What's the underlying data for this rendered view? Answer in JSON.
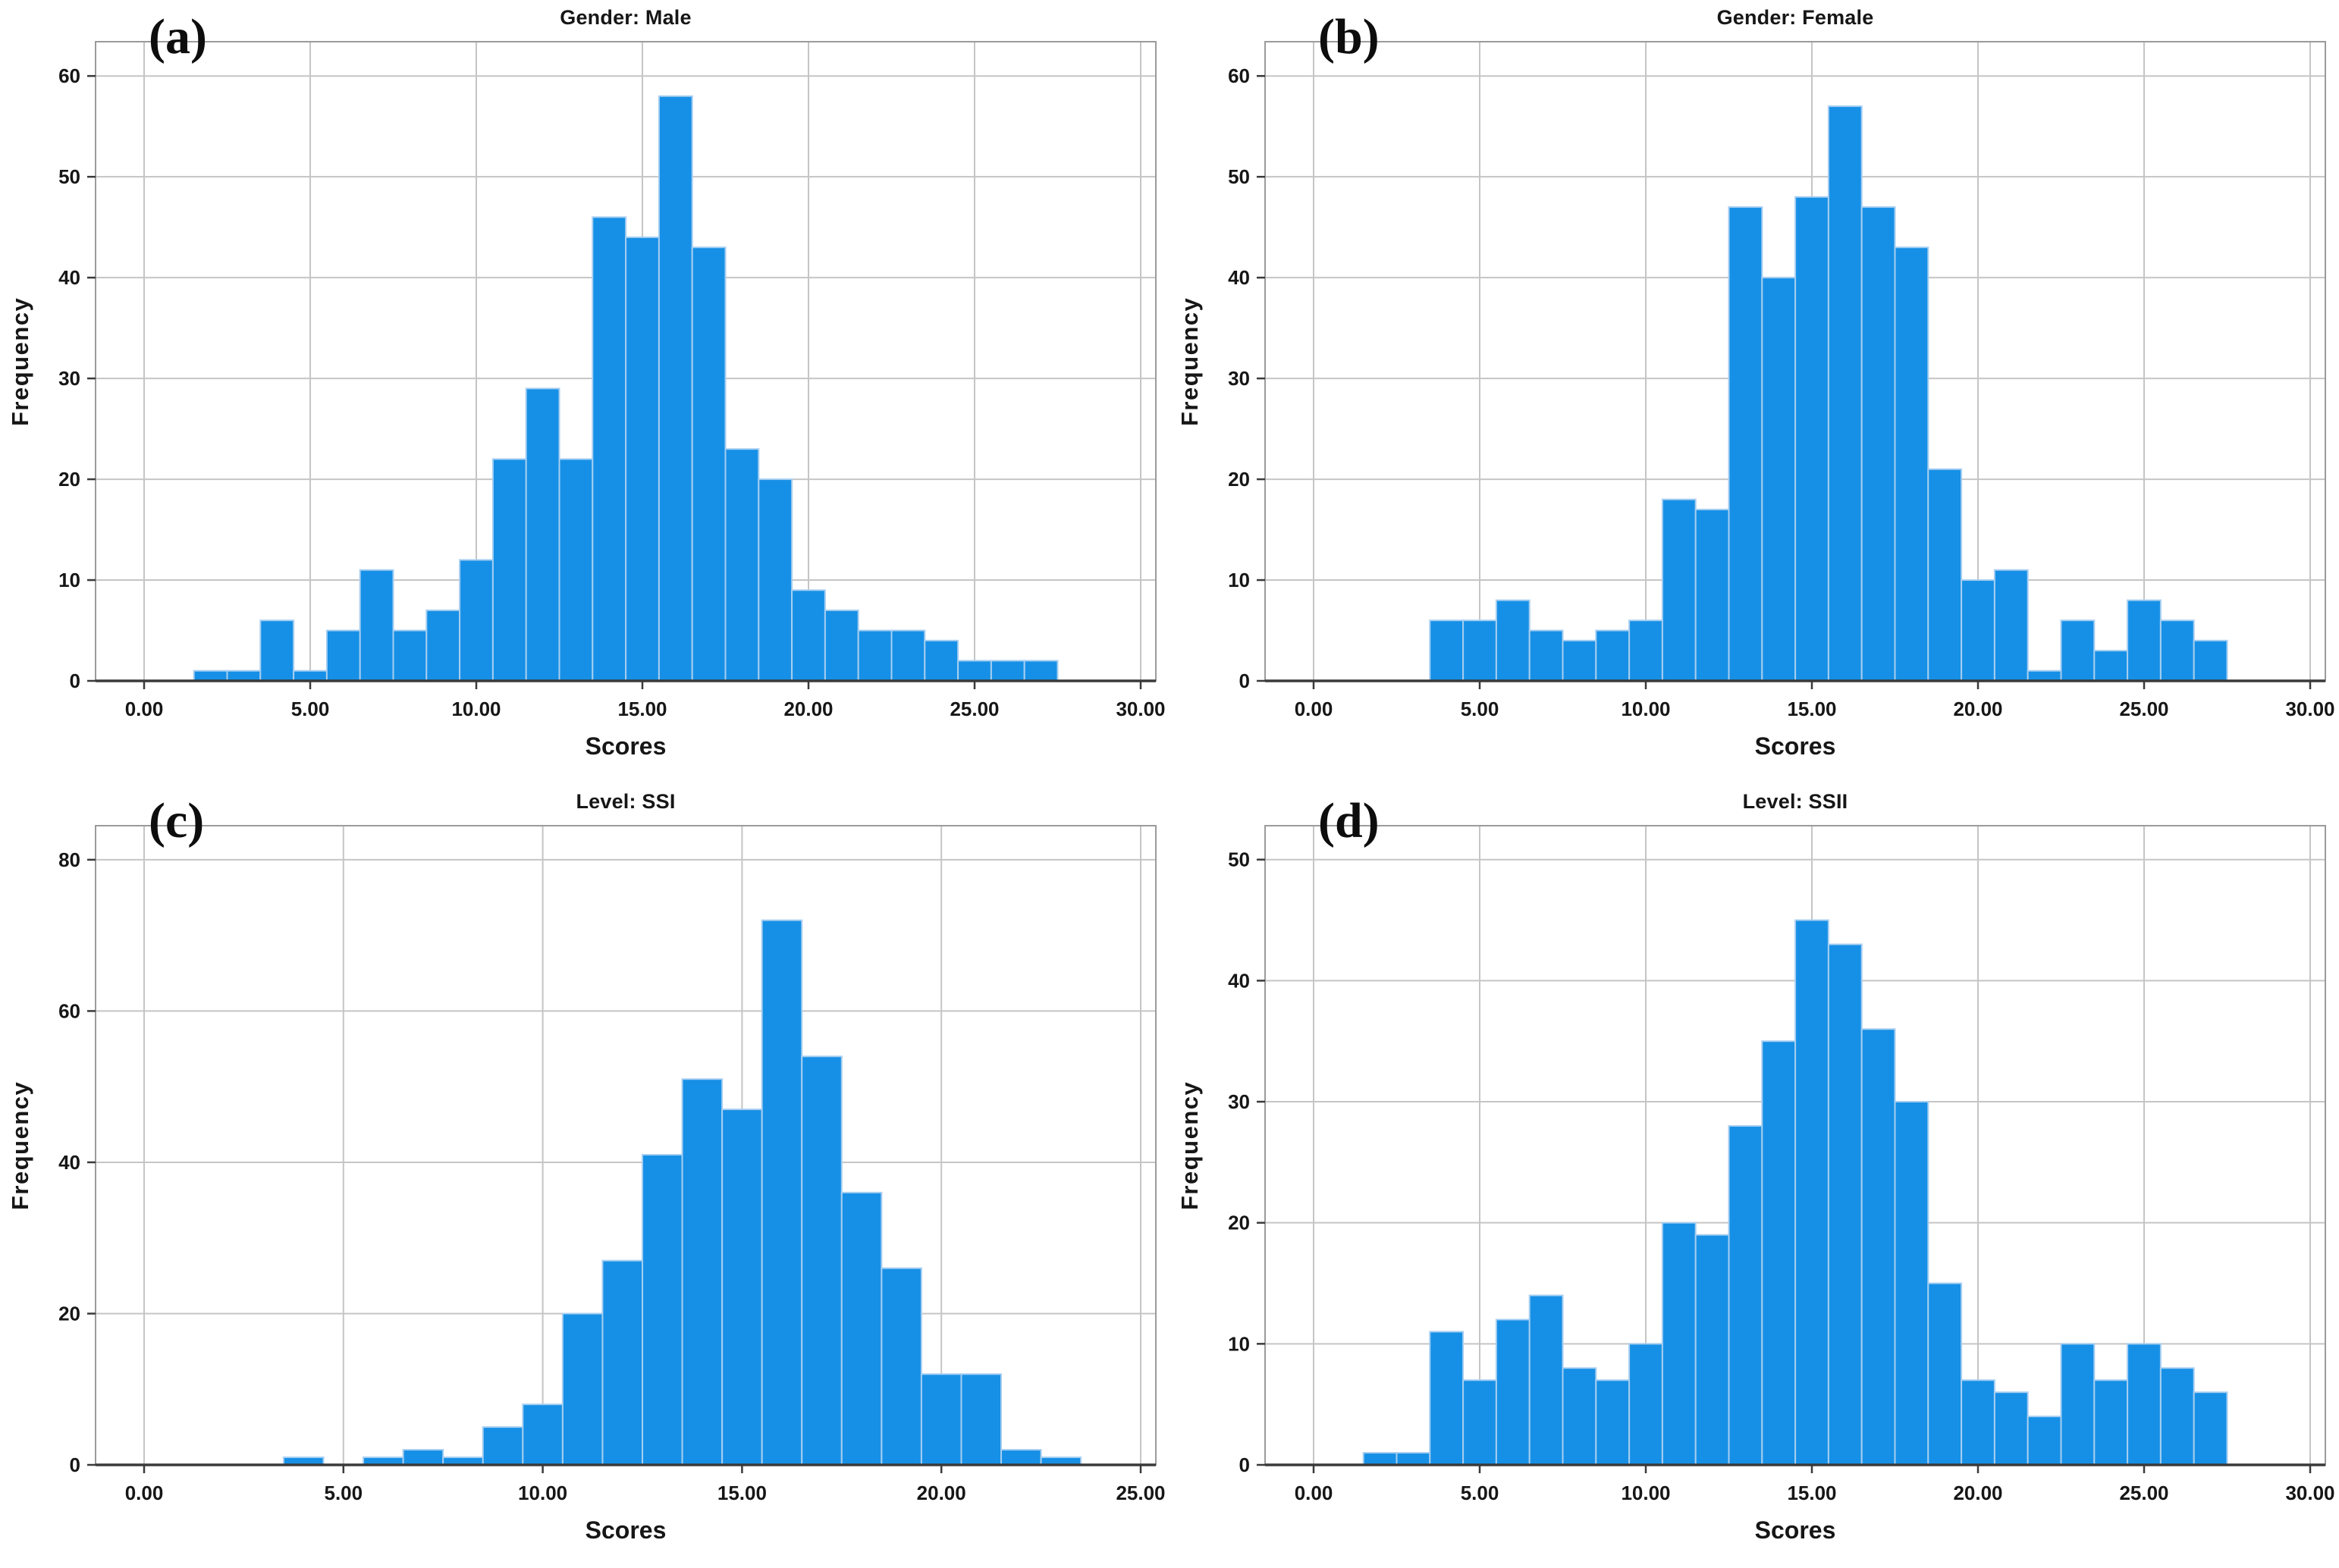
{
  "figure": {
    "background": "#FFFFFF",
    "description_title_row1_left": "Gender: Male",
    "description_title_row1_right": "Gender: Female",
    "description_title_row2_left": "Level: SSI",
    "description_title_row2_right": "Level: SSII"
  },
  "colors": {
    "bar_fill": "#1690E6",
    "bar_stroke": "#A6CEF1",
    "gridline": "#C5C5C5",
    "frame": "#9B9B9B",
    "axis_line": "#3A3A3A",
    "text": "#161616",
    "background": "#FFFFFF"
  },
  "chart_data": [
    {
      "panel_id": "a",
      "type": "bar",
      "corner_label": "(a)",
      "title": "Gender: Male",
      "xlabel": "Scores",
      "ylabel": "Frequency",
      "bin_width": 1,
      "x_ticks": [
        0,
        5,
        10,
        15,
        20,
        25,
        30
      ],
      "x_tick_labels": [
        "0.00",
        "5.00",
        "10.00",
        "15.00",
        "20.00",
        "25.00",
        "30.00"
      ],
      "y_ticks": [
        0,
        10,
        20,
        30,
        40,
        50,
        60
      ],
      "y_tick_labels": [
        "0",
        "10",
        "20",
        "30",
        "40",
        "50",
        "60"
      ],
      "ylim": [
        0,
        63.4
      ],
      "ymax_view": 63.4,
      "grid": true,
      "bars": {
        "centers": [
          2,
          3,
          4,
          5,
          6,
          7,
          8,
          9,
          10,
          11,
          12,
          13,
          14,
          15,
          16,
          17,
          18,
          19,
          20,
          21,
          22,
          23,
          24,
          25,
          26,
          27
        ],
        "counts": [
          1,
          1,
          6,
          1,
          5,
          11,
          5,
          7,
          12,
          22,
          29,
          22,
          46,
          44,
          58,
          43,
          23,
          20,
          9,
          7,
          5,
          5,
          4,
          2,
          2,
          2
        ]
      }
    },
    {
      "panel_id": "b",
      "type": "bar",
      "corner_label": "(b)",
      "title": "Gender: Female",
      "xlabel": "Scores",
      "ylabel": "Frequency",
      "bin_width": 1,
      "x_ticks": [
        0,
        5,
        10,
        15,
        20,
        25,
        30
      ],
      "x_tick_labels": [
        "0.00",
        "5.00",
        "10.00",
        "15.00",
        "20.00",
        "25.00",
        "30.00"
      ],
      "y_ticks": [
        0,
        10,
        20,
        30,
        40,
        50,
        60
      ],
      "y_tick_labels": [
        "0",
        "10",
        "20",
        "30",
        "40",
        "50",
        "60"
      ],
      "ylim": [
        0,
        63.4
      ],
      "ymax_view": 63.4,
      "grid": true,
      "bars": {
        "centers": [
          4,
          5,
          6,
          7,
          8,
          9,
          10,
          11,
          12,
          13,
          14,
          15,
          16,
          17,
          18,
          19,
          20,
          21,
          22,
          23,
          24,
          25,
          26,
          27
        ],
        "counts": [
          6,
          6,
          8,
          5,
          4,
          5,
          6,
          18,
          17,
          47,
          40,
          48,
          57,
          47,
          43,
          21,
          10,
          11,
          1,
          6,
          3,
          8,
          6,
          4
        ]
      }
    },
    {
      "panel_id": "c",
      "type": "bar",
      "corner_label": "(c)",
      "title": "Level: SSI",
      "xlabel": "Scores",
      "ylabel": "Frequency",
      "bin_width": 1,
      "x_ticks": [
        0,
        5,
        10,
        15,
        20,
        25
      ],
      "x_tick_labels": [
        "0.00",
        "5.00",
        "10.00",
        "15.00",
        "20.00",
        "25.00"
      ],
      "y_ticks": [
        0,
        20,
        40,
        60,
        80
      ],
      "y_tick_labels": [
        "0",
        "20",
        "40",
        "60",
        "80"
      ],
      "ylim": [
        0,
        84.5
      ],
      "ymax_view": 84.5,
      "grid": true,
      "bars": {
        "centers": [
          4,
          5,
          6,
          7,
          8,
          9,
          10,
          11,
          12,
          13,
          14,
          15,
          16,
          17,
          18,
          19,
          20,
          21,
          22,
          23
        ],
        "counts": [
          1,
          0,
          1,
          2,
          1,
          5,
          8,
          20,
          27,
          41,
          51,
          47,
          72,
          54,
          36,
          26,
          12,
          12,
          2,
          1
        ]
      }
    },
    {
      "panel_id": "d",
      "type": "bar",
      "corner_label": "(d)",
      "title": "Level: SSII",
      "xlabel": "Scores",
      "ylabel": "Frequency",
      "bin_width": 1,
      "x_ticks": [
        0,
        5,
        10,
        15,
        20,
        25,
        30
      ],
      "x_tick_labels": [
        "0.00",
        "5.00",
        "10.00",
        "15.00",
        "20.00",
        "25.00",
        "30.00"
      ],
      "y_ticks": [
        0,
        10,
        20,
        30,
        40,
        50
      ],
      "y_tick_labels": [
        "0",
        "10",
        "20",
        "30",
        "40",
        "50"
      ],
      "ylim": [
        0,
        52.8
      ],
      "ymax_view": 52.8,
      "grid": true,
      "bars": {
        "centers": [
          2,
          3,
          4,
          5,
          6,
          7,
          8,
          9,
          10,
          11,
          12,
          13,
          14,
          15,
          16,
          17,
          18,
          19,
          20,
          21,
          22,
          23,
          24,
          25,
          26,
          27
        ],
        "counts": [
          1,
          1,
          11,
          7,
          12,
          14,
          8,
          7,
          10,
          20,
          19,
          28,
          35,
          45,
          43,
          36,
          30,
          15,
          7,
          6,
          4,
          10,
          7,
          10,
          8,
          6
        ]
      }
    }
  ]
}
